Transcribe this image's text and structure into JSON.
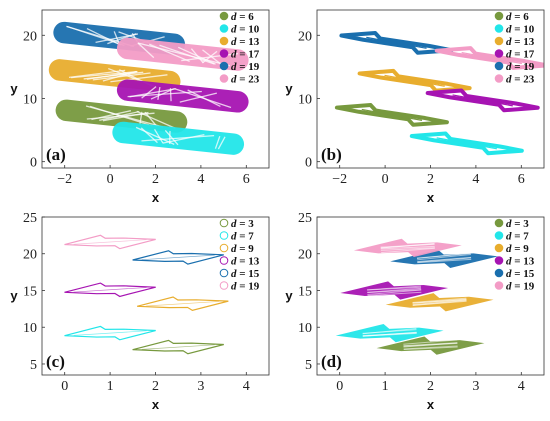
{
  "chart_data": [
    {
      "type": "scatter",
      "panel_label": "(a)",
      "xlabel": "x",
      "ylabel": "y",
      "xlim": [
        -3,
        7
      ],
      "ylim": [
        -1,
        24
      ],
      "xticks": [
        -2,
        0,
        2,
        4,
        6
      ],
      "yticks": [
        0,
        10,
        20
      ],
      "legend": "top-right",
      "style": "dense",
      "series": [
        {
          "name": "d = 6",
          "var": "d",
          "num": "6",
          "color": "#77993e",
          "center": [
            0.5,
            7.2
          ],
          "dir": [
            1,
            -0.38
          ],
          "length": 6.2,
          "width": 3.4
        },
        {
          "name": "d = 10",
          "var": "d",
          "num": "10",
          "color": "#22e6e9",
          "center": [
            3.0,
            3.7
          ],
          "dir": [
            1,
            -0.38
          ],
          "length": 6.2,
          "width": 3.4
        },
        {
          "name": "d = 13",
          "var": "d",
          "num": "13",
          "color": "#e8ad2e",
          "center": [
            0.2,
            13.6
          ],
          "dir": [
            1,
            -0.38
          ],
          "length": 6.2,
          "width": 3.4
        },
        {
          "name": "d = 17",
          "var": "d",
          "num": "17",
          "color": "#a614b2",
          "center": [
            3.2,
            10.4
          ],
          "dir": [
            1,
            -0.38
          ],
          "length": 6.2,
          "width": 3.4
        },
        {
          "name": "d = 19",
          "var": "d",
          "num": "19",
          "color": "#1a6fae",
          "center": [
            0.4,
            19.5
          ],
          "dir": [
            1,
            -0.38
          ],
          "length": 6.2,
          "width": 3.4
        },
        {
          "name": "d = 23",
          "var": "d",
          "num": "23",
          "color": "#f39cc6",
          "center": [
            3.2,
            17.0
          ],
          "dir": [
            1,
            -0.38
          ],
          "length": 6.2,
          "width": 3.4
        }
      ]
    },
    {
      "type": "scatter",
      "panel_label": "(b)",
      "xlabel": "x",
      "ylabel": "y",
      "xlim": [
        -3,
        7
      ],
      "ylim": [
        -1,
        24
      ],
      "xticks": [
        -2,
        0,
        2,
        4,
        6
      ],
      "yticks": [
        0,
        10,
        20
      ],
      "legend": "top-right",
      "style": "thin",
      "series": [
        {
          "name": "d = 6",
          "var": "d",
          "num": "6",
          "color": "#77993e",
          "center": [
            0.3,
            7.4
          ],
          "dir": [
            1,
            -0.38
          ],
          "length": 5.2,
          "width": 2.4
        },
        {
          "name": "d = 10",
          "var": "d",
          "num": "10",
          "color": "#22e6e9",
          "center": [
            3.6,
            2.9
          ],
          "dir": [
            1,
            -0.38
          ],
          "length": 5.2,
          "width": 2.4
        },
        {
          "name": "d = 13",
          "var": "d",
          "num": "13",
          "color": "#e8ad2e",
          "center": [
            1.3,
            12.8
          ],
          "dir": [
            1,
            -0.38
          ],
          "length": 5.2,
          "width": 2.4
        },
        {
          "name": "d = 17",
          "var": "d",
          "num": "17",
          "color": "#a614b2",
          "center": [
            4.3,
            9.7
          ],
          "dir": [
            1,
            -0.38
          ],
          "length": 5.2,
          "width": 2.4
        },
        {
          "name": "d = 19",
          "var": "d",
          "num": "19",
          "color": "#1a6fae",
          "center": [
            0.5,
            18.8
          ],
          "dir": [
            1,
            -0.38
          ],
          "length": 5.2,
          "width": 2.4
        },
        {
          "name": "d = 23",
          "var": "d",
          "num": "23",
          "color": "#f39cc6",
          "center": [
            4.7,
            16.4
          ],
          "dir": [
            1,
            -0.38
          ],
          "length": 5.2,
          "width": 2.4
        }
      ]
    },
    {
      "type": "line",
      "panel_label": "(c)",
      "xlabel": "x",
      "ylabel": "y",
      "xlim": [
        -0.5,
        4.5
      ],
      "ylim": [
        3.5,
        25
      ],
      "xticks": [
        0,
        1,
        2,
        3,
        4
      ],
      "yticks": [
        5,
        10,
        15,
        20,
        25
      ],
      "legend": "top-right",
      "style": "outline",
      "series": [
        {
          "name": "d = 3",
          "var": "d",
          "num": "3",
          "color": "#77993e",
          "center": [
            2.5,
            7.3
          ],
          "dir": [
            1,
            0.45
          ],
          "length": 2.2,
          "width": 2.0
        },
        {
          "name": "d = 7",
          "var": "d",
          "num": "7",
          "color": "#22e6e9",
          "center": [
            1.0,
            9.2
          ],
          "dir": [
            1,
            0.45
          ],
          "length": 2.2,
          "width": 2.0
        },
        {
          "name": "d = 9",
          "var": "d",
          "num": "9",
          "color": "#e8ad2e",
          "center": [
            2.6,
            13.2
          ],
          "dir": [
            1,
            0.45
          ],
          "length": 2.2,
          "width": 2.0
        },
        {
          "name": "d = 13",
          "var": "d",
          "num": "13",
          "color": "#a614b2",
          "center": [
            1.0,
            15.1
          ],
          "dir": [
            1,
            0.45
          ],
          "length": 2.2,
          "width": 2.0
        },
        {
          "name": "d = 15",
          "var": "d",
          "num": "15",
          "color": "#1a6fae",
          "center": [
            2.5,
            19.5
          ],
          "dir": [
            1,
            0.45
          ],
          "length": 2.2,
          "width": 2.0
        },
        {
          "name": "d = 19",
          "var": "d",
          "num": "19",
          "color": "#f39cc6",
          "center": [
            1.0,
            21.6
          ],
          "dir": [
            1,
            0.45
          ],
          "length": 2.2,
          "width": 2.0
        }
      ]
    },
    {
      "type": "scatter",
      "panel_label": "(d)",
      "xlabel": "x",
      "ylabel": "y",
      "xlim": [
        -0.5,
        4.5
      ],
      "ylim": [
        3.5,
        25
      ],
      "xticks": [
        0,
        1,
        2,
        3,
        4
      ],
      "yticks": [
        5,
        10,
        15,
        20,
        25
      ],
      "legend": "top-right",
      "style": "arrow",
      "series": [
        {
          "name": "d = 3",
          "var": "d",
          "num": "3",
          "color": "#77993e",
          "center": [
            2.0,
            7.5
          ],
          "dir": [
            1,
            0.45
          ],
          "length": 2.6,
          "width": 2.6
        },
        {
          "name": "d = 7",
          "var": "d",
          "num": "7",
          "color": "#22e6e9",
          "center": [
            1.1,
            9.2
          ],
          "dir": [
            1,
            0.45
          ],
          "length": 2.6,
          "width": 2.6
        },
        {
          "name": "d = 9",
          "var": "d",
          "num": "9",
          "color": "#e8ad2e",
          "center": [
            2.2,
            13.4
          ],
          "dir": [
            1,
            0.45
          ],
          "length": 2.6,
          "width": 2.6
        },
        {
          "name": "d = 13",
          "var": "d",
          "num": "13",
          "color": "#a614b2",
          "center": [
            1.2,
            15.0
          ],
          "dir": [
            1,
            0.45
          ],
          "length": 2.6,
          "width": 2.6
        },
        {
          "name": "d = 15",
          "var": "d",
          "num": "15",
          "color": "#1a6fae",
          "center": [
            2.3,
            19.3
          ],
          "dir": [
            1,
            0.45
          ],
          "length": 2.6,
          "width": 2.6
        },
        {
          "name": "d = 19",
          "var": "d",
          "num": "19",
          "color": "#f39cc6",
          "center": [
            1.5,
            20.8
          ],
          "dir": [
            1,
            0.45
          ],
          "length": 2.6,
          "width": 2.6
        }
      ]
    }
  ]
}
